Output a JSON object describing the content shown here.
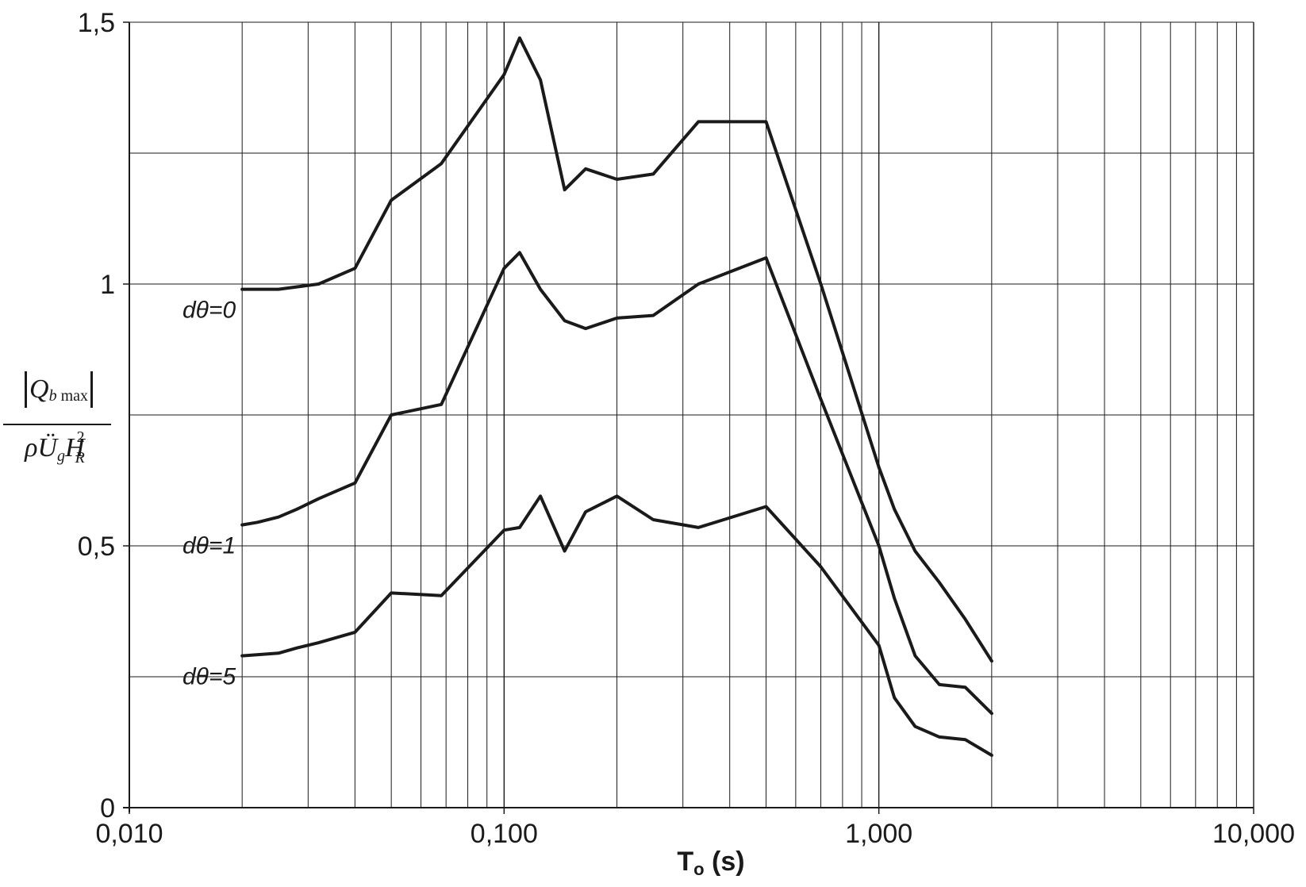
{
  "chart_data": {
    "type": "line",
    "x_scale": "log",
    "xlim": [
      0.01,
      10
    ],
    "ylim": [
      0,
      1.5
    ],
    "xlabel": "To (s)",
    "ylabel": "|Q_b max| / ρÜ_g H_R^2",
    "x_ticks": [
      0.01,
      0.1,
      1,
      10
    ],
    "x_tick_labels": [
      "0,010",
      "0,100",
      "1,000",
      "10,000"
    ],
    "y_ticks": [
      0,
      0.5,
      1,
      1.5
    ],
    "y_tick_labels": [
      "0",
      "0,5",
      "1",
      "1,5"
    ],
    "y_minor_gridlines": [
      0.25,
      0.75,
      1.25
    ],
    "grid": true,
    "series": [
      {
        "name": "dθ=0",
        "color": "#1a1a1a",
        "x": [
          0.02,
          0.025,
          0.032,
          0.04,
          0.05,
          0.068,
          0.1,
          0.11,
          0.125,
          0.145,
          0.165,
          0.2,
          0.25,
          0.33,
          0.5,
          0.7,
          1.0,
          1.1,
          1.25,
          1.45,
          1.7,
          2.0
        ],
        "y": [
          0.99,
          0.99,
          1.0,
          1.03,
          1.16,
          1.23,
          1.4,
          1.47,
          1.39,
          1.18,
          1.22,
          1.2,
          1.21,
          1.31,
          1.31,
          1.0,
          0.65,
          0.57,
          0.49,
          0.43,
          0.36,
          0.28
        ]
      },
      {
        "name": "dθ=1",
        "color": "#1a1a1a",
        "x": [
          0.02,
          0.022,
          0.025,
          0.028,
          0.032,
          0.04,
          0.05,
          0.068,
          0.1,
          0.11,
          0.125,
          0.145,
          0.165,
          0.2,
          0.25,
          0.33,
          0.5,
          0.7,
          1.0,
          1.1,
          1.25,
          1.45,
          1.7,
          2.0
        ],
        "y": [
          0.54,
          0.545,
          0.555,
          0.57,
          0.59,
          0.62,
          0.75,
          0.77,
          1.03,
          1.06,
          0.99,
          0.93,
          0.915,
          0.935,
          0.94,
          1.0,
          1.05,
          0.78,
          0.5,
          0.4,
          0.29,
          0.235,
          0.23,
          0.18
        ]
      },
      {
        "name": "dθ=5",
        "color": "#1a1a1a",
        "x": [
          0.02,
          0.025,
          0.028,
          0.032,
          0.04,
          0.05,
          0.068,
          0.1,
          0.11,
          0.125,
          0.145,
          0.165,
          0.2,
          0.25,
          0.33,
          0.5,
          0.7,
          1.0,
          1.1,
          1.25,
          1.45,
          1.7,
          2.0
        ],
        "y": [
          0.29,
          0.295,
          0.305,
          0.315,
          0.335,
          0.41,
          0.405,
          0.53,
          0.535,
          0.595,
          0.49,
          0.565,
          0.595,
          0.55,
          0.535,
          0.575,
          0.46,
          0.31,
          0.21,
          0.155,
          0.135,
          0.13,
          0.1
        ]
      }
    ],
    "annotations": [
      {
        "text": "dθ=0",
        "series": 0
      },
      {
        "text": "dθ=1",
        "series": 1
      },
      {
        "text": "dθ=5",
        "series": 2
      }
    ]
  },
  "y_label_parts": {
    "numerator_symbol": "Q",
    "numerator_subscript_b": "b",
    "numerator_subscript_max": "max",
    "denominator_rho": "ρ",
    "denominator_u": "Ü",
    "denominator_u_sub": "g",
    "denominator_h": "H",
    "denominator_h_sub": "R",
    "denominator_h_sup": "2"
  }
}
